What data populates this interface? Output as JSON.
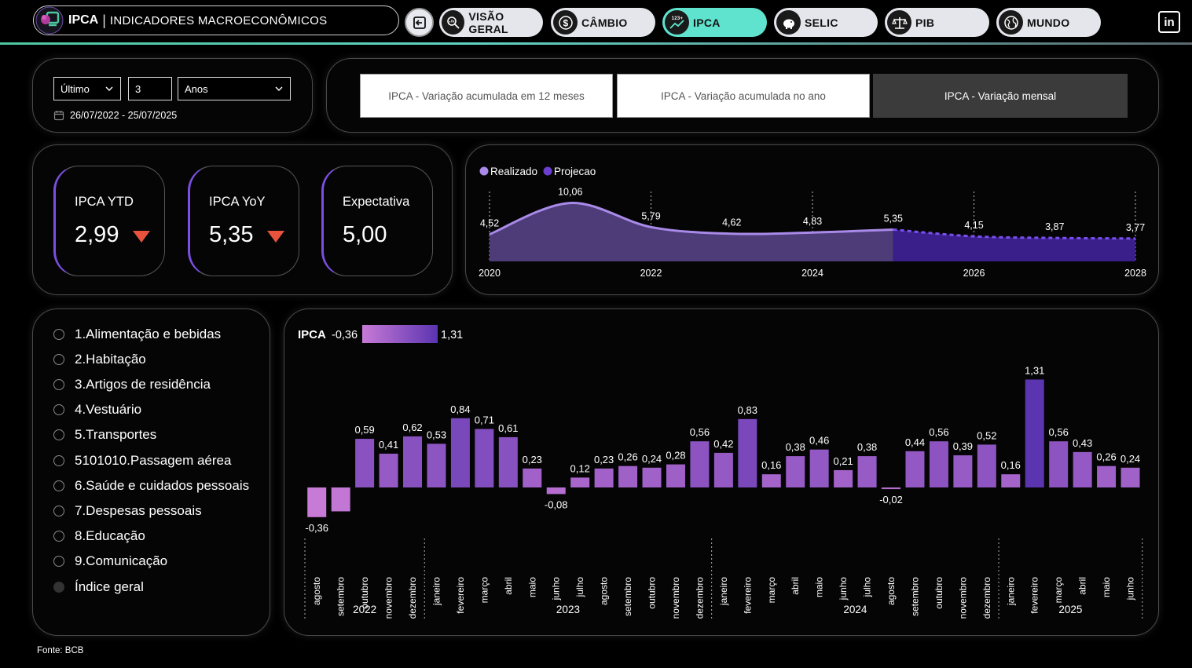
{
  "header": {
    "app_short": "IPCA",
    "app_title": "INDICADORES MACROECONÔMICOS",
    "separator": "|",
    "nav": [
      {
        "label": "VISÃO GERAL",
        "icon": "search-chart-icon"
      },
      {
        "label": "CÂMBIO",
        "icon": "dollar-icon"
      },
      {
        "label": "IPCA",
        "icon": "trend-123-icon",
        "active": true
      },
      {
        "label": "SELIC",
        "icon": "piggy-bank-icon"
      },
      {
        "label": "PIB",
        "icon": "scale-icon"
      },
      {
        "label": "MUNDO",
        "icon": "globe-icon"
      }
    ],
    "linkedin": "in"
  },
  "filters": {
    "period_type": "Último",
    "period_count": "3",
    "period_unit": "Anos",
    "date_range": "26/07/2022 - 25/07/2025"
  },
  "tabs": [
    {
      "label": "IPCA - Variação acumulada em 12 meses",
      "active": false
    },
    {
      "label": "IPCA - Variação acumulada no ano",
      "active": false
    },
    {
      "label": "IPCA - Variação mensal",
      "active": true
    }
  ],
  "kpis": [
    {
      "label": "IPCA YTD",
      "value": "2,99",
      "trend": "down"
    },
    {
      "label": "IPCA YoY",
      "value": "5,35",
      "trend": "down"
    },
    {
      "label": "Expectativa",
      "value": "5,00",
      "trend": "none"
    }
  ],
  "categories": [
    {
      "label": "1.Alimentação e bebidas",
      "selected": false
    },
    {
      "label": "2.Habitação",
      "selected": false
    },
    {
      "label": "3.Artigos de residência",
      "selected": false
    },
    {
      "label": "4.Vestuário",
      "selected": false
    },
    {
      "label": "5.Transportes",
      "selected": false
    },
    {
      "label": "5101010.Passagem aérea",
      "selected": false
    },
    {
      "label": "6.Saúde e cuidados pessoais",
      "selected": false
    },
    {
      "label": "7.Despesas pessoais",
      "selected": false
    },
    {
      "label": "8.Educação",
      "selected": false
    },
    {
      "label": "9.Comunicação",
      "selected": false
    },
    {
      "label": "Índice geral",
      "selected": true
    }
  ],
  "footer": {
    "source": "Fonte: BCB"
  },
  "colors": {
    "accent": "#5fe3cf",
    "realizado": "#a98ae8",
    "projecao": "#6b3fd0",
    "bar_low": "#c77ad6",
    "bar_high": "#5b34b0",
    "down_arrow": "#e9523d"
  },
  "chart_data": [
    {
      "type": "area",
      "legend": [
        "Realizado",
        "Projecao"
      ],
      "x": [
        2020,
        2021,
        2022,
        2023,
        2024,
        2025,
        2026,
        2027,
        2028
      ],
      "x_ticks": [
        "2020",
        "2022",
        "2024",
        "2026",
        "2028"
      ],
      "series": [
        {
          "name": "Realizado",
          "values": [
            4.52,
            10.06,
            5.79,
            4.62,
            4.83,
            5.35,
            null,
            null,
            null
          ]
        },
        {
          "name": "Projecao",
          "values": [
            null,
            null,
            null,
            null,
            null,
            5.35,
            4.15,
            3.87,
            3.77
          ]
        }
      ],
      "labels": [
        "4,52",
        "10,06",
        "5,79",
        "4,62",
        "4,83",
        "5,35",
        "4,15",
        "3,87",
        "3,77"
      ]
    },
    {
      "type": "bar",
      "title": "IPCA",
      "color_scale": {
        "min": -0.36,
        "max": 1.31,
        "min_label": "-0,36",
        "max_label": "1,31"
      },
      "categories": [
        "agosto",
        "setembro",
        "outubro",
        "novembro",
        "dezembro",
        "janeiro",
        "fevereiro",
        "março",
        "abril",
        "maio",
        "junho",
        "julho",
        "agosto",
        "setembro",
        "outubro",
        "novembro",
        "dezembro",
        "janeiro",
        "fevereiro",
        "março",
        "abril",
        "maio",
        "junho",
        "julho",
        "agosto",
        "setembro",
        "outubro",
        "novembro",
        "dezembro",
        "janeiro",
        "fevereiro",
        "março",
        "abril",
        "maio",
        "junho"
      ],
      "values": [
        -0.36,
        -0.29,
        0.59,
        0.41,
        0.62,
        0.53,
        0.84,
        0.71,
        0.61,
        0.23,
        -0.08,
        0.12,
        0.23,
        0.26,
        0.24,
        0.28,
        0.56,
        0.42,
        0.83,
        0.16,
        0.38,
        0.46,
        0.21,
        0.38,
        -0.02,
        0.44,
        0.56,
        0.39,
        0.52,
        0.16,
        1.31,
        0.56,
        0.43,
        0.26,
        0.24
      ],
      "value_labels": [
        "-0,36",
        "",
        "0,59",
        "0,41",
        "0,62",
        "0,53",
        "0,84",
        "0,71",
        "0,61",
        "0,23",
        "-0,08",
        "0,12",
        "0,23",
        "0,26",
        "0,24",
        "0,28",
        "0,56",
        "0,42",
        "0,83",
        "0,16",
        "0,38",
        "0,46",
        "0,21",
        "0,38",
        "-0,02",
        "0,44",
        "0,56",
        "0,39",
        "0,52",
        "0,16",
        "1,31",
        "0,56",
        "0,43",
        "0,26",
        "0,24"
      ],
      "years": [
        {
          "label": "2022",
          "start": 0,
          "end": 4
        },
        {
          "label": "2023",
          "start": 5,
          "end": 16
        },
        {
          "label": "2024",
          "start": 17,
          "end": 28
        },
        {
          "label": "2025",
          "start": 29,
          "end": 34
        }
      ]
    }
  ]
}
